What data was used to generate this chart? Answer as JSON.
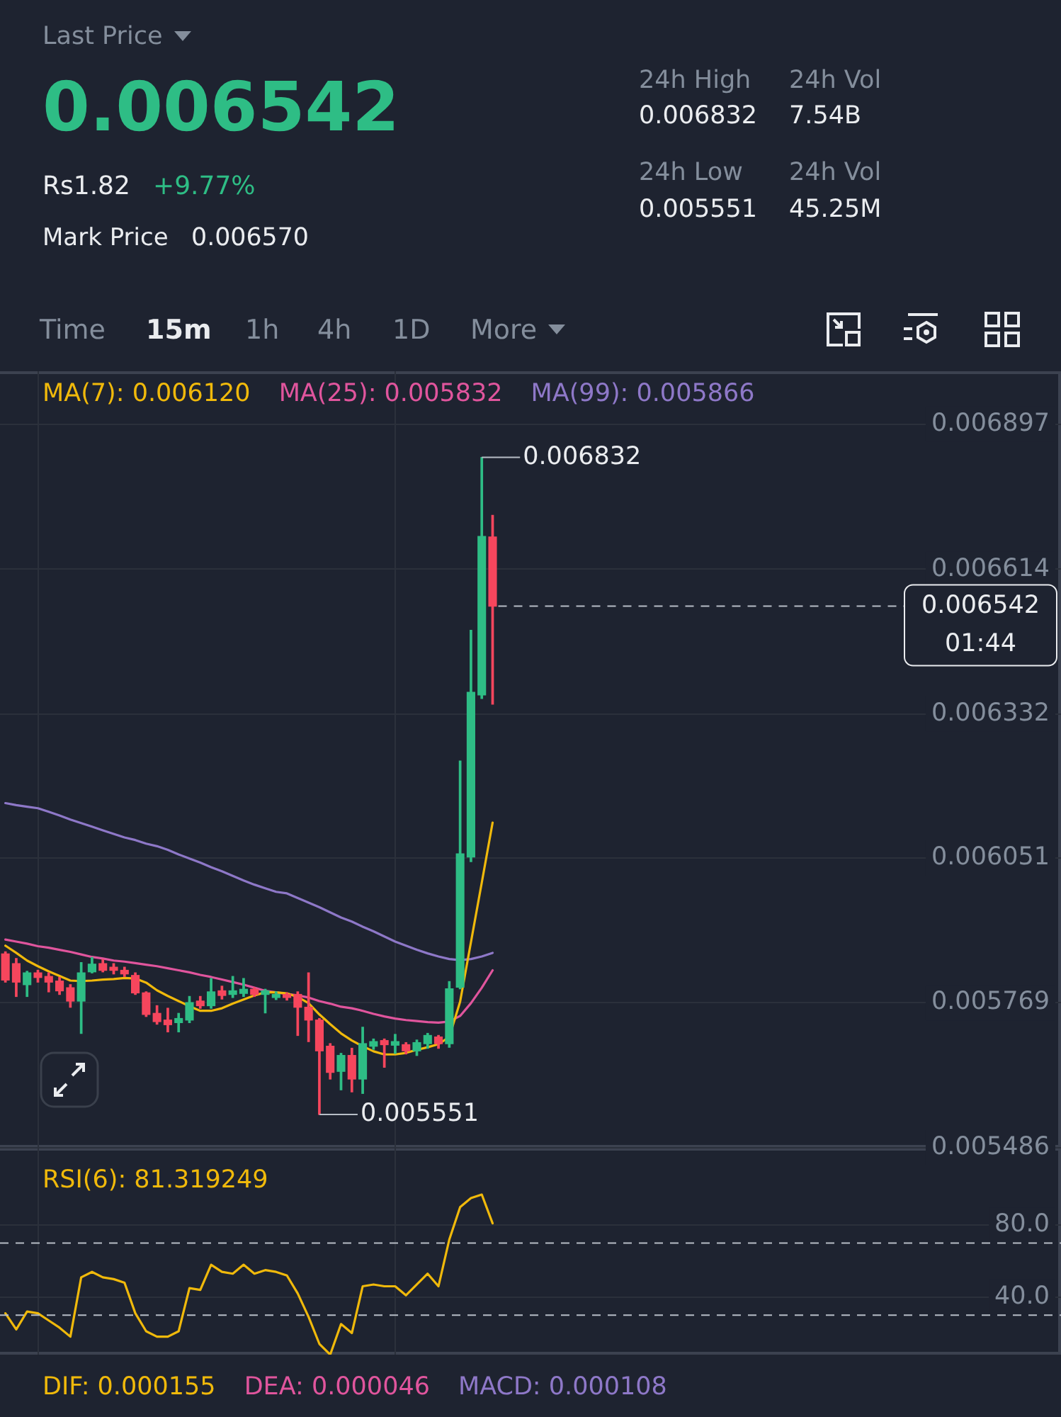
{
  "chart_data": [
    {
      "type": "other",
      "title": "Last Price",
      "annotations": [
        "0.006542",
        "Rs1.82",
        "+9.77%",
        "Mark Price",
        "0.006570",
        "24h High",
        "0.006832",
        "24h Low",
        "0.005551",
        "24h Vol",
        "7.54B",
        "24h Vol",
        "45.25M",
        "Time",
        "15m",
        "1h",
        "4h",
        "1D",
        "More"
      ]
    },
    {
      "type": "candlestick",
      "categories": [
        null,
        null,
        null,
        null,
        null,
        null,
        null,
        null,
        null,
        null,
        null,
        null,
        null,
        null,
        null,
        null,
        null,
        null,
        null,
        null,
        null,
        null,
        null,
        null,
        null,
        null,
        null,
        null,
        null,
        null,
        null,
        null,
        null,
        null,
        null,
        null,
        null,
        null,
        null,
        null,
        null,
        null,
        null,
        null,
        null,
        null,
        null,
        null,
        null,
        null,
        null,
        null,
        null,
        null,
        null,
        null,
        null,
        null,
        null,
        null,
        null,
        null,
        null,
        null,
        null,
        null,
        null,
        null,
        null,
        null,
        null,
        null,
        null,
        null,
        null,
        null,
        null,
        null,
        null,
        null,
        null,
        null,
        null,
        null,
        null,
        null,
        null,
        null,
        null,
        null,
        null,
        null,
        null,
        null,
        null,
        null,
        null,
        null
      ],
      "ohlc": [
        [
          0.005864,
          0.005868,
          0.005809,
          0.005813
        ],
        [
          0.005845,
          0.005855,
          0.005781,
          0.005809
        ],
        [
          0.005804,
          0.00583,
          0.005781,
          0.005827
        ],
        [
          0.005827,
          0.005832,
          0.005809,
          0.005818
        ],
        [
          0.00582,
          0.005827,
          0.00579,
          0.005809
        ],
        [
          0.005811,
          0.005818,
          0.005785,
          0.005792
        ],
        [
          0.005798,
          0.005804,
          0.00576,
          0.005772
        ],
        [
          0.005772,
          0.005847,
          0.005709,
          0.005827
        ],
        [
          0.005829,
          0.005857,
          0.005827,
          0.005844
        ],
        [
          0.005845,
          0.005853,
          0.005829,
          0.005832
        ],
        [
          0.005838,
          0.005845,
          0.005825,
          0.005832
        ],
        [
          0.005832,
          0.005838,
          0.00582,
          0.005825
        ],
        [
          0.005822,
          0.005827,
          0.005785,
          0.005788
        ],
        [
          0.005788,
          0.00579,
          0.005742,
          0.005746
        ],
        [
          0.005748,
          0.005763,
          0.005727,
          0.005732
        ],
        [
          0.005735,
          0.005758,
          0.005712,
          0.005726
        ],
        [
          0.00573,
          0.005748,
          0.005712,
          0.005738
        ],
        [
          0.005735,
          0.005781,
          0.00573,
          0.005769
        ],
        [
          0.005772,
          0.005781,
          0.005758,
          0.005763
        ],
        [
          0.005763,
          0.005816,
          0.005758,
          0.00579
        ],
        [
          0.005792,
          0.005801,
          0.005776,
          0.005783
        ],
        [
          0.005785,
          0.00582,
          0.005779,
          0.005792
        ],
        [
          0.005787,
          0.005816,
          0.005781,
          0.005795
        ],
        [
          0.005795,
          0.005798,
          0.005781,
          0.005785
        ],
        [
          0.005785,
          0.005795,
          0.005749,
          0.005792
        ],
        [
          0.005779,
          0.00579,
          0.005775,
          0.005785
        ],
        [
          0.005785,
          0.005788,
          0.005774,
          0.005779
        ],
        [
          0.005785,
          0.00579,
          0.005705,
          0.00576
        ],
        [
          0.00576,
          0.005827,
          0.005693,
          0.005735
        ],
        [
          0.005735,
          0.005738,
          0.005551,
          0.005675
        ],
        [
          0.005684,
          0.005689,
          0.00562,
          0.005633
        ],
        [
          0.005635,
          0.00567,
          0.005599,
          0.005666
        ],
        [
          0.005666,
          0.00568,
          0.005595,
          0.00562
        ],
        [
          0.00562,
          0.005721,
          0.005592,
          0.005689
        ],
        [
          0.005684,
          0.005698,
          0.005678,
          0.005693
        ],
        [
          0.005695,
          0.005698,
          0.005643,
          0.005687
        ],
        [
          0.005686,
          0.005707,
          0.00567,
          0.005693
        ],
        [
          0.005687,
          0.005691,
          0.005669,
          0.005675
        ],
        [
          0.005675,
          0.005696,
          0.005666,
          0.005691
        ],
        [
          0.005689,
          0.005709,
          0.00568,
          0.005705
        ],
        [
          0.005702,
          0.005705,
          0.00568,
          0.005689
        ],
        [
          0.005689,
          0.00581,
          0.005682,
          0.005796
        ],
        [
          0.005799,
          0.00624,
          0.005796,
          0.006059
        ],
        [
          0.006053,
          0.006495,
          0.006044,
          0.006374
        ],
        [
          0.006369,
          0.006832,
          0.006362,
          0.006678
        ],
        [
          0.006677,
          0.006719,
          0.006351,
          0.006542
        ],
        null,
        null,
        null,
        null,
        null,
        null,
        null,
        null,
        null,
        null,
        null,
        null,
        null,
        null,
        null,
        null,
        null,
        null,
        null,
        null,
        null,
        null,
        null,
        null,
        null,
        null,
        null,
        null,
        null,
        null,
        null,
        null,
        null,
        null,
        null,
        null,
        null,
        null,
        null,
        null,
        null,
        null,
        null,
        null,
        null,
        null,
        null,
        null,
        null,
        null,
        null,
        null
      ],
      "series": [
        {
          "name": "MA(7): 0.006120",
          "type": "line",
          "color": "#f0b90b",
          "values": [
            0.00588,
            0.005866,
            0.005851,
            0.00584,
            0.00583,
            0.005821,
            0.005812,
            0.005811,
            0.005812,
            0.005814,
            0.005815,
            0.005817,
            0.005816,
            0.005808,
            0.005793,
            0.005782,
            0.005772,
            0.005762,
            0.005753,
            0.005753,
            0.005758,
            0.005767,
            0.005775,
            0.005783,
            0.005789,
            0.005789,
            0.005787,
            0.00578,
            0.005768,
            0.005746,
            0.005727,
            0.005709,
            0.005695,
            0.005684,
            0.005674,
            0.005668,
            0.005668,
            0.005671,
            0.005677,
            0.005682,
            0.005688,
            0.005702,
            0.005771,
            0.005887,
            0.006003,
            0.00612,
            null,
            null,
            null,
            null,
            null,
            null,
            null,
            null,
            null,
            null,
            null,
            null,
            null,
            null,
            null,
            null,
            null,
            null,
            null,
            null,
            null,
            null,
            null,
            null,
            null,
            null,
            null,
            null,
            null,
            null,
            null,
            null,
            null,
            null,
            null,
            null,
            null,
            null,
            null,
            null,
            null,
            null,
            null,
            null,
            null,
            null,
            null,
            null,
            null,
            null,
            null,
            null
          ]
        },
        {
          "name": "MA(25): 0.005832",
          "type": "line",
          "color": "#e0559d",
          "values": [
            0.005892,
            0.005888,
            0.005884,
            0.005879,
            0.005876,
            0.005872,
            0.005868,
            0.005863,
            0.005858,
            0.005855,
            0.005851,
            0.005849,
            0.005846,
            0.005843,
            0.00584,
            0.005836,
            0.005832,
            0.005828,
            0.005823,
            0.005819,
            0.005814,
            0.005809,
            0.005804,
            0.005798,
            0.005792,
            0.005789,
            0.005786,
            0.005783,
            0.005779,
            0.005772,
            0.005767,
            0.005761,
            0.005758,
            0.005753,
            0.005747,
            0.005742,
            0.005738,
            0.005735,
            0.005733,
            0.005731,
            0.00573,
            0.005732,
            0.005743,
            0.005768,
            0.005798,
            0.005832,
            null,
            null,
            null,
            null,
            null,
            null,
            null,
            null,
            null,
            null,
            null,
            null,
            null,
            null,
            null,
            null,
            null,
            null,
            null,
            null,
            null,
            null,
            null,
            null,
            null,
            null,
            null,
            null,
            null,
            null,
            null,
            null,
            null,
            null,
            null,
            null,
            null,
            null,
            null,
            null,
            null,
            null,
            null,
            null,
            null,
            null,
            null,
            null,
            null,
            null,
            null,
            null
          ]
        },
        {
          "name": "MA(99): 0.005866",
          "type": "line",
          "color": "#8e78c8",
          "values": [
            0.006158,
            0.006154,
            0.006151,
            0.006148,
            0.006141,
            0.006134,
            0.006126,
            0.006119,
            0.006112,
            0.006105,
            0.006098,
            0.006091,
            0.006086,
            0.006079,
            0.006074,
            0.006067,
            0.006058,
            0.00605,
            0.006042,
            0.006033,
            0.006025,
            0.006016,
            0.006007,
            0.005999,
            0.005992,
            0.005985,
            0.005982,
            0.005973,
            0.005964,
            0.005955,
            0.005945,
            0.005935,
            0.005927,
            0.005917,
            0.005908,
            0.005898,
            0.005888,
            0.00588,
            0.005872,
            0.005865,
            0.005859,
            0.005854,
            0.005852,
            0.005854,
            0.005859,
            0.005866,
            null,
            null,
            null,
            null,
            null,
            null,
            null,
            null,
            null,
            null,
            null,
            null,
            null,
            null,
            null,
            null,
            null,
            null,
            null,
            null,
            null,
            null,
            null,
            null,
            null,
            null,
            null,
            null,
            null,
            null,
            null,
            null,
            null,
            null,
            null,
            null,
            null,
            null,
            null,
            null,
            null,
            null,
            null,
            null,
            null,
            null,
            null,
            null,
            null,
            null,
            null,
            null
          ]
        }
      ],
      "ylim": [
        0.005486,
        0.007
      ],
      "yticks": [
        0.005486,
        0.005769,
        0.006051,
        0.006332,
        0.006614,
        0.006897
      ],
      "grid": true,
      "legend": "top left",
      "annotations": [
        "0.006832",
        "0.005551"
      ],
      "ref_lines": [
        {
          "axis": "y",
          "value": 0.006542,
          "label": "0.006542\n01:44",
          "line_style": "dashed"
        }
      ]
    },
    {
      "type": "line",
      "categories": [
        null,
        null,
        null,
        null,
        null,
        null,
        null,
        null,
        null,
        null,
        null,
        null,
        null,
        null,
        null,
        null,
        null,
        null,
        null,
        null,
        null,
        null,
        null,
        null,
        null,
        null,
        null,
        null,
        null,
        null,
        null,
        null,
        null,
        null,
        null,
        null,
        null,
        null,
        null,
        null,
        null,
        null,
        null,
        null,
        null,
        null,
        null,
        null,
        null,
        null,
        null,
        null,
        null,
        null,
        null,
        null,
        null,
        null,
        null,
        null,
        null,
        null,
        null,
        null,
        null,
        null,
        null,
        null,
        null,
        null,
        null,
        null,
        null,
        null,
        null,
        null,
        null,
        null,
        null,
        null,
        null,
        null,
        null,
        null,
        null,
        null,
        null,
        null,
        null,
        null,
        null,
        null,
        null,
        null,
        null,
        null,
        null,
        null
      ],
      "series": [
        {
          "name": "RSI(6): 81.319249",
          "color": "#f0b90b",
          "values": [
            31,
            22,
            32,
            31,
            27,
            23,
            18,
            51,
            54,
            51,
            50,
            48,
            31,
            21,
            18,
            18,
            21,
            45,
            44,
            58,
            54,
            53,
            58,
            53,
            55,
            54,
            52,
            42,
            29,
            14,
            8,
            25,
            20,
            46,
            47,
            46,
            46,
            41,
            47,
            53,
            46,
            72,
            90,
            95,
            97,
            81,
            null,
            null,
            null,
            null,
            null,
            null,
            null,
            null,
            null,
            null,
            null,
            null,
            null,
            null,
            null,
            null,
            null,
            null,
            null,
            null,
            null,
            null,
            null,
            null,
            null,
            null,
            null,
            null,
            null,
            null,
            null,
            null,
            null,
            null,
            null,
            null,
            null,
            null,
            null,
            null,
            null,
            null,
            null,
            null,
            null,
            null,
            null,
            null,
            null,
            null,
            null,
            null
          ]
        }
      ],
      "ylim": [
        8,
        123
      ],
      "yticks": [
        {
          "value": 40,
          "label": "40.0"
        },
        {
          "value": 80,
          "label": "80.0"
        }
      ],
      "grid": true,
      "legend": "top left",
      "ref_lines": [
        {
          "axis": "y",
          "value": 70,
          "line_style": "dashed"
        },
        {
          "axis": "y",
          "value": 30,
          "line_style": "dashed"
        }
      ]
    },
    {
      "type": "other",
      "annotations": [
        "DIF: 0.000155",
        "DEA: 0.000046",
        "MACD: 0.000108"
      ],
      "colors": [
        "#f0b90b",
        "#e0559d",
        "#8e78c8"
      ]
    }
  ]
}
